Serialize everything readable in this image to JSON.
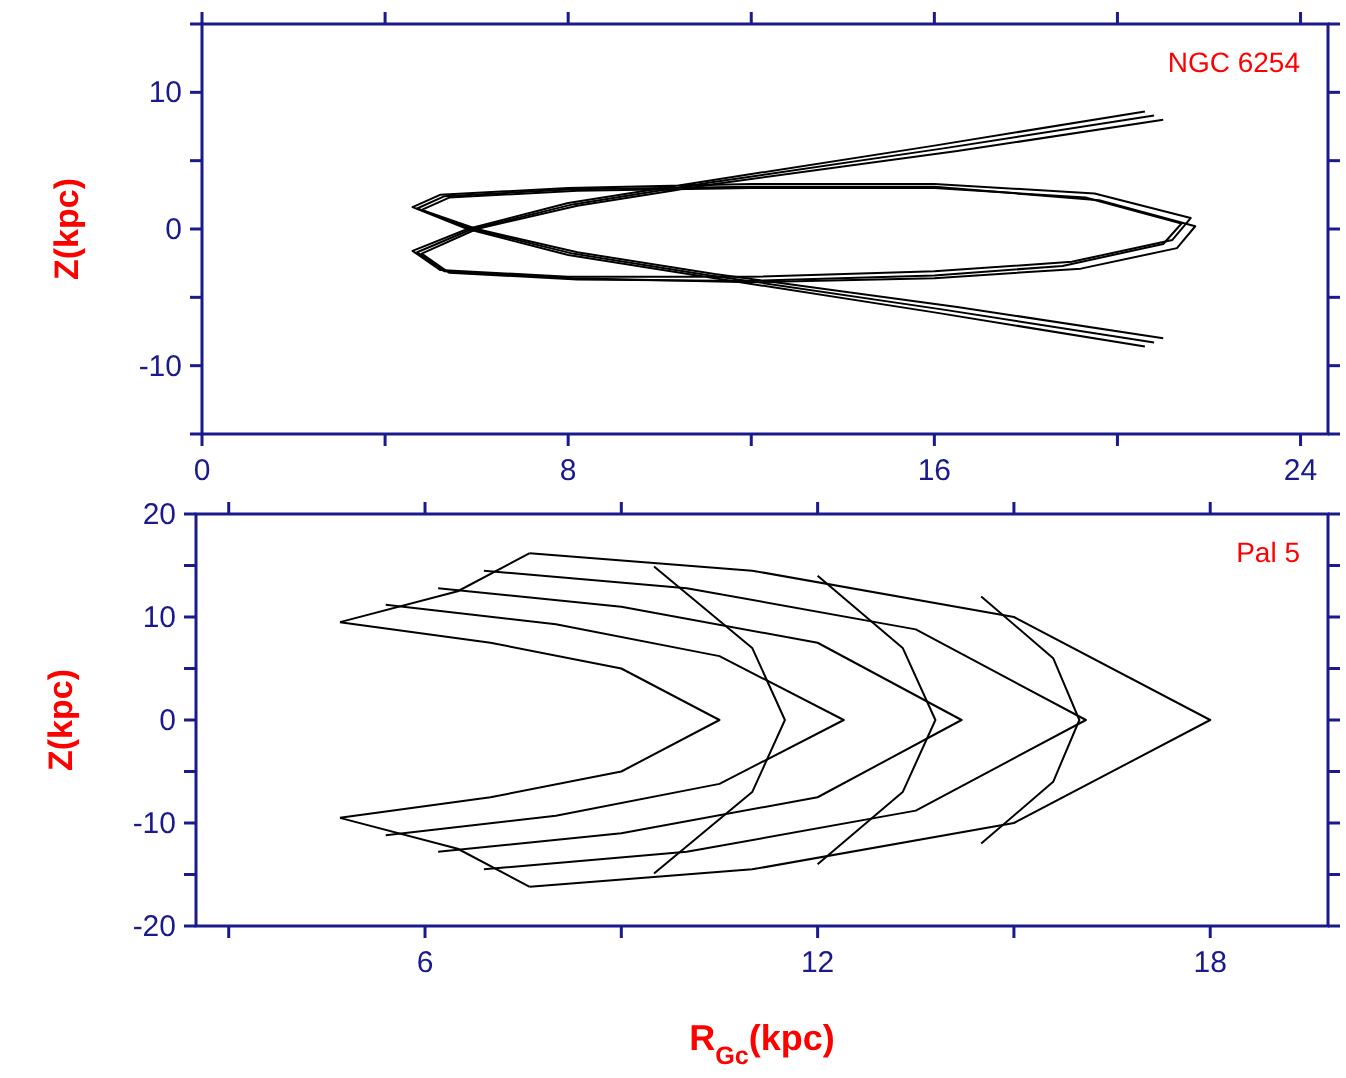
{
  "chart_data": [
    {
      "type": "line",
      "ylabel": "Z(kpc)",
      "annotations": [
        "NGC 6254"
      ],
      "xlim": [
        0,
        24.6
      ],
      "xticks": [
        0,
        {
          "value": 4,
          "label": null
        },
        8,
        {
          "value": 12,
          "label": null
        },
        16,
        {
          "value": 20,
          "label": null
        },
        24
      ],
      "ylim": [
        -15,
        15
      ],
      "yticks": [
        {
          "value": -15,
          "label": null
        },
        -10,
        {
          "value": -5,
          "label": null
        },
        0,
        {
          "value": 5,
          "label": null
        },
        10,
        {
          "value": 15,
          "label": null
        }
      ],
      "grid": false,
      "line_style": "solid",
      "series": [
        {
          "color": "#000000",
          "x": [
            20.6,
            16,
            11,
            8,
            5.8,
            4.6,
            5.2,
            8,
            12,
            16,
            19.5,
            21.6,
            21.2,
            19,
            16,
            12,
            8,
            5.2,
            4.6,
            5.8,
            8,
            11,
            16,
            20.6
          ],
          "values": [
            -8.6,
            -6.1,
            -3.5,
            -1.9,
            0,
            1.6,
            2.5,
            3,
            3.3,
            3.3,
            2.6,
            0.8,
            -0.8,
            -2.4,
            -3.1,
            -3.5,
            -3.5,
            -3,
            -1.6,
            0,
            1.9,
            3.5,
            6.1,
            8.6
          ]
        },
        {
          "color": "#000000",
          "x": [
            21,
            16.5,
            11.2,
            8.2,
            6,
            4.8,
            5.4,
            8.2,
            12,
            16,
            19.3,
            21.4,
            21,
            18.8,
            16,
            12,
            8.2,
            5.4,
            4.8,
            6,
            8.2,
            11.2,
            16.5,
            21
          ],
          "values": [
            -8,
            -5.7,
            -3.3,
            -1.7,
            0,
            1.4,
            2.3,
            2.8,
            3,
            3,
            2.3,
            0.4,
            -1.1,
            -2.7,
            -3.4,
            -3.8,
            -3.7,
            -3.2,
            -1.8,
            0,
            1.7,
            3.3,
            5.7,
            8
          ]
        },
        {
          "color": "#000000",
          "x": [
            20.8,
            16.2,
            11.1,
            8.1,
            5.9,
            4.7,
            5.3,
            8.1,
            12,
            16,
            19.6,
            21.7,
            21.3,
            19.2,
            16,
            12,
            8.1,
            5.3,
            4.7,
            5.9,
            8.1,
            11.1,
            16.2,
            20.8
          ],
          "values": [
            -8.3,
            -5.9,
            -3.4,
            -1.8,
            0,
            1.5,
            2.4,
            2.9,
            3.1,
            3.1,
            2.1,
            0.2,
            -1.4,
            -2.9,
            -3.6,
            -3.9,
            -3.6,
            -3.1,
            -1.7,
            0,
            1.8,
            3.4,
            5.9,
            8.3
          ]
        }
      ]
    },
    {
      "type": "line",
      "ylabel": "Z(kpc)",
      "xlabel": "R$_{Gc}$(kpc)",
      "annotations": [
        "Pal 5"
      ],
      "xlim": [
        2.5,
        19.8
      ],
      "xticks": [
        {
          "value": 3,
          "label": null
        },
        6,
        {
          "value": 9,
          "label": null
        },
        12,
        {
          "value": 15,
          "label": null
        },
        18
      ],
      "ylim": [
        -20,
        20
      ],
      "yticks": [
        -20,
        {
          "value": -15,
          "label": null
        },
        -10,
        {
          "value": -5,
          "label": null
        },
        0,
        {
          "value": 5,
          "label": null
        },
        10,
        {
          "value": 15,
          "label": null
        },
        20
      ],
      "grid": false,
      "line_style": "solid",
      "series": [
        {
          "color": "#000000",
          "x": [
            4.7,
            7,
            9,
            10.5,
            9,
            7,
            4.7
          ],
          "values": [
            9.5,
            7.5,
            5,
            0,
            -5,
            -7.5,
            -9.5
          ]
        },
        {
          "color": "#000000",
          "x": [
            5.4,
            8,
            10.5,
            12.4,
            10.5,
            8,
            5.4
          ],
          "values": [
            11.2,
            9.3,
            6.2,
            0,
            -6.2,
            -9.3,
            -11.2
          ]
        },
        {
          "color": "#000000",
          "x": [
            6.2,
            9,
            12,
            14.2,
            12,
            9,
            6.2
          ],
          "values": [
            12.8,
            11,
            7.5,
            0,
            -7.5,
            -11,
            -12.8
          ]
        },
        {
          "color": "#000000",
          "x": [
            6.9,
            10,
            13.5,
            16.1,
            13.5,
            10,
            6.9
          ],
          "values": [
            14.5,
            12.8,
            8.8,
            0,
            -8.8,
            -12.8,
            -14.5
          ]
        },
        {
          "color": "#000000",
          "x": [
            7.6,
            11,
            15,
            18,
            15,
            11,
            7.6
          ],
          "values": [
            16.2,
            14.5,
            10,
            0,
            -10,
            -14.5,
            -16.2
          ]
        },
        {
          "color": "#000000",
          "x": [
            4.7,
            6.5,
            7.6
          ],
          "values": [
            9.5,
            12.5,
            16.2
          ]
        },
        {
          "color": "#000000",
          "x": [
            4.7,
            6.5,
            7.6
          ],
          "values": [
            -9.5,
            -12.5,
            -16.2
          ]
        },
        {
          "color": "#000000",
          "x": [
            9.5,
            11,
            11.5,
            11,
            9.5
          ],
          "values": [
            14.9,
            7,
            0,
            -7,
            -14.9
          ]
        },
        {
          "color": "#000000",
          "x": [
            12,
            13.3,
            13.8,
            13.3,
            12
          ],
          "values": [
            14,
            7,
            0,
            -7,
            -14
          ]
        },
        {
          "color": "#000000",
          "x": [
            14.5,
            15.6,
            16,
            15.6,
            14.5
          ],
          "values": [
            12,
            6,
            0,
            -6,
            -12
          ]
        }
      ]
    }
  ]
}
